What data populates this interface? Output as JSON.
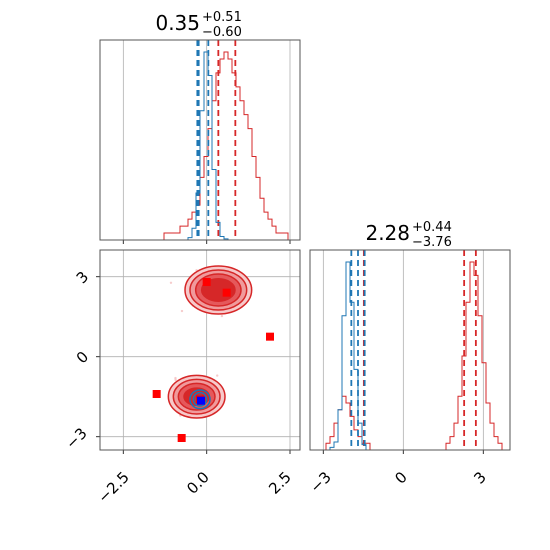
{
  "chart_data": [
    {
      "type": "histogram",
      "panel": "top-left",
      "title": "0.35",
      "title_sup": "+0.51",
      "title_sub": "−0.60",
      "xlim": [
        -3.2,
        2.8
      ],
      "grid": true,
      "colors": {
        "red": "#d62728",
        "blue": "#1f77b4"
      },
      "bin_edges_start": -3.2,
      "bin_width": 0.12,
      "series": [
        {
          "color": "red",
          "quantiles": [
            -0.25,
            0.35,
            0.86
          ],
          "values": [
            0,
            0,
            0,
            0,
            0,
            0,
            0,
            0,
            0,
            0,
            0,
            0,
            0,
            0,
            0,
            0,
            1,
            1,
            1,
            1,
            2,
            2,
            3,
            4,
            5,
            9,
            12,
            16,
            20,
            24,
            26,
            27,
            26,
            24,
            22,
            20,
            18,
            16,
            12,
            9,
            6,
            4,
            3,
            2,
            1,
            1,
            1,
            0,
            0,
            0
          ]
        },
        {
          "color": "blue",
          "quantiles": [
            -0.28,
            -0.24,
            0.05
          ],
          "values": [
            0,
            0,
            0,
            0,
            0,
            0,
            0,
            0,
            0,
            0,
            0,
            0,
            0,
            0,
            0,
            0,
            0,
            0,
            0,
            0,
            0,
            0,
            2,
            10,
            40,
            110,
            160,
            140,
            60,
            15,
            3,
            1,
            0,
            0,
            0,
            0,
            0,
            0,
            0,
            0,
            0,
            0,
            0,
            0,
            0,
            0,
            0,
            0,
            0,
            0
          ]
        }
      ]
    },
    {
      "type": "histogram",
      "panel": "bottom-right",
      "title": "2.28",
      "title_sup": "+0.44",
      "title_sub": "−3.76",
      "xlim": [
        -3.5,
        4.0
      ],
      "grid": true,
      "xticks": [
        "−3",
        "0",
        "3"
      ],
      "bin_edges_start": -3.5,
      "bin_width": 0.15,
      "series": [
        {
          "color": "red",
          "quantiles": [
            -1.48,
            2.28,
            2.72
          ],
          "values": [
            0,
            0,
            0,
            0,
            1,
            2,
            4,
            6,
            8,
            7,
            5,
            3,
            2,
            1,
            1,
            0,
            0,
            0,
            0,
            0,
            0,
            0,
            0,
            0,
            0,
            0,
            0,
            0,
            0,
            0,
            0,
            0,
            0,
            0,
            1,
            2,
            4,
            8,
            14,
            22,
            28,
            26,
            20,
            13,
            7,
            4,
            2,
            1,
            0,
            0
          ]
        },
        {
          "color": "blue",
          "quantiles": [
            -1.95,
            -1.7,
            -1.45
          ],
          "values": [
            0,
            0,
            0,
            0,
            0,
            1,
            3,
            15,
            50,
            70,
            55,
            30,
            10,
            2,
            0,
            0,
            0,
            0,
            0,
            0,
            0,
            0,
            0,
            0,
            0,
            0,
            0,
            0,
            0,
            0,
            0,
            0,
            0,
            0,
            0,
            0,
            0,
            0,
            0,
            0,
            0,
            0,
            0,
            0,
            0,
            0,
            0,
            0,
            0,
            0
          ]
        }
      ]
    },
    {
      "type": "scatter",
      "panel": "bottom-left",
      "xlim": [
        -3.2,
        2.8
      ],
      "ylim": [
        -3.5,
        4.0
      ],
      "xticks": [
        "−2.5",
        "0.0",
        "2.5"
      ],
      "yticks": [
        "−3",
        "0",
        "3"
      ],
      "grid": true,
      "red_contours": [
        {
          "cx": 0.35,
          "cy": 2.5,
          "rx": [
            1.0,
            0.85,
            0.68,
            0.5
          ],
          "ry": [
            0.9,
            0.75,
            0.6,
            0.42
          ]
        },
        {
          "cx": -0.3,
          "cy": -1.5,
          "rx": [
            0.85,
            0.7,
            0.55,
            0.38
          ],
          "ry": [
            0.8,
            0.65,
            0.5,
            0.32
          ]
        }
      ],
      "blue_contour": {
        "cx": -0.2,
        "cy": -1.6,
        "rx": [
          0.3,
          0.2,
          0.12
        ],
        "ry": [
          0.35,
          0.25,
          0.15
        ]
      },
      "red_markers": [
        {
          "x": 0.0,
          "y": 2.8
        },
        {
          "x": 0.6,
          "y": 2.4
        },
        {
          "x": 1.9,
          "y": 0.75
        },
        {
          "x": -1.5,
          "y": -1.4
        },
        {
          "x": -0.75,
          "y": -3.05
        },
        {
          "x": -0.2,
          "y": -1.6
        }
      ],
      "blue_marker": {
        "x": -0.17,
        "y": -1.65
      }
    }
  ]
}
